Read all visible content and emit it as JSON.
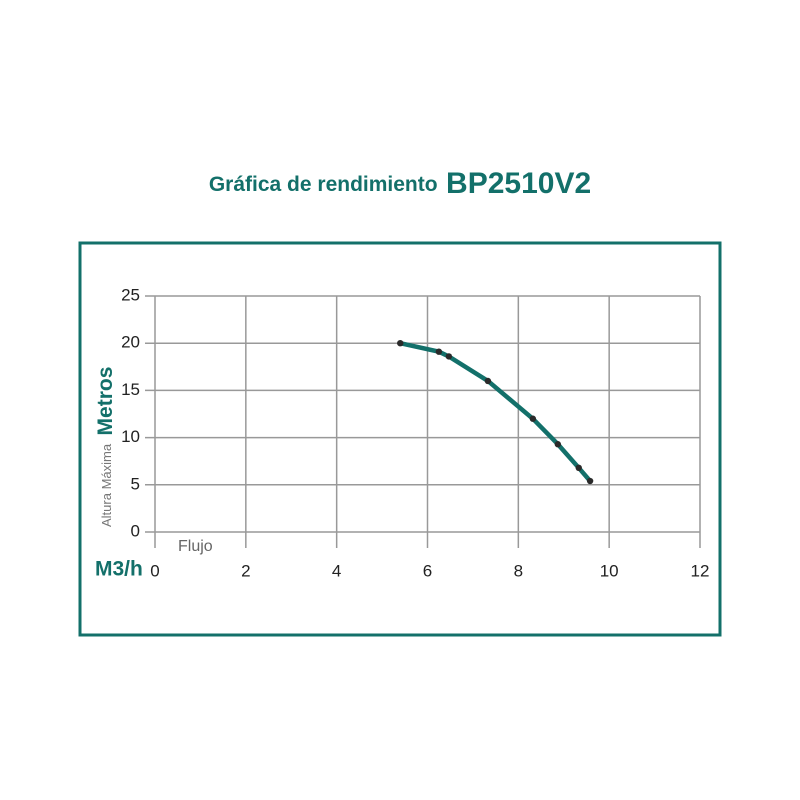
{
  "chart_data": {
    "type": "line",
    "title": "Gráfica de rendimiento",
    "subtitle": "BP2510V2",
    "y_label": "Altura Máxima",
    "y_unit": "Metros",
    "x_label": "Flujo",
    "x_unit": "M3/h",
    "series": [
      {
        "color": "#13706a",
        "marker_color": "#2a2a2a",
        "x": [
          5.4,
          6.25,
          6.47,
          7.33,
          8.32,
          8.87,
          9.33,
          9.58
        ],
        "values": [
          20,
          19.1,
          18.6,
          16,
          12,
          9.3,
          6.8,
          5.4
        ]
      }
    ],
    "xlim": [
      0,
      12
    ],
    "xticks": [
      0,
      2,
      4,
      6,
      8,
      10,
      12
    ],
    "ylim": [
      0,
      25
    ],
    "yticks": [
      0,
      5,
      10,
      15,
      20,
      25
    ],
    "grid": true
  }
}
